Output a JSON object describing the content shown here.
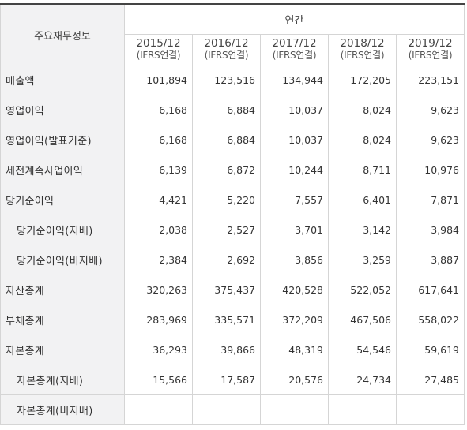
{
  "header": {
    "corner_label": "주요재무정보",
    "group_label": "연간",
    "years": [
      {
        "year": "2015/12",
        "basis": "(IFRS연결)"
      },
      {
        "year": "2016/12",
        "basis": "(IFRS연결)"
      },
      {
        "year": "2017/12",
        "basis": "(IFRS연결)"
      },
      {
        "year": "2018/12",
        "basis": "(IFRS연결)"
      },
      {
        "year": "2019/12",
        "basis": "(IFRS연결)"
      }
    ]
  },
  "rows": [
    {
      "label": "매출액",
      "indent": false,
      "values": [
        "101,894",
        "123,516",
        "134,944",
        "172,205",
        "223,151"
      ]
    },
    {
      "label": "영업이익",
      "indent": false,
      "values": [
        "6,168",
        "6,884",
        "10,037",
        "8,024",
        "9,623"
      ]
    },
    {
      "label": "영업이익(발표기준)",
      "indent": false,
      "values": [
        "6,168",
        "6,884",
        "10,037",
        "8,024",
        "9,623"
      ]
    },
    {
      "label": "세전계속사업이익",
      "indent": false,
      "values": [
        "6,139",
        "6,872",
        "10,244",
        "8,711",
        "10,976"
      ]
    },
    {
      "label": "당기순이익",
      "indent": false,
      "values": [
        "4,421",
        "5,220",
        "7,557",
        "6,401",
        "7,871"
      ]
    },
    {
      "label": "당기순이익(지배)",
      "indent": true,
      "values": [
        "2,038",
        "2,527",
        "3,701",
        "3,142",
        "3,984"
      ]
    },
    {
      "label": "당기순이익(비지배)",
      "indent": true,
      "values": [
        "2,384",
        "2,692",
        "3,856",
        "3,259",
        "3,887"
      ]
    },
    {
      "label": "자산총계",
      "indent": false,
      "values": [
        "320,263",
        "375,437",
        "420,528",
        "522,052",
        "617,641"
      ]
    },
    {
      "label": "부채총계",
      "indent": false,
      "values": [
        "283,969",
        "335,571",
        "372,209",
        "467,506",
        "558,022"
      ]
    },
    {
      "label": "자본총계",
      "indent": false,
      "values": [
        "36,293",
        "39,866",
        "48,319",
        "54,546",
        "59,619"
      ]
    },
    {
      "label": "자본총계(지배)",
      "indent": true,
      "values": [
        "15,566",
        "17,587",
        "20,576",
        "24,734",
        "27,485"
      ]
    },
    {
      "label": "자본총계(비지배)",
      "indent": true,
      "values": [
        "",
        "",
        "",
        "",
        ""
      ]
    }
  ]
}
